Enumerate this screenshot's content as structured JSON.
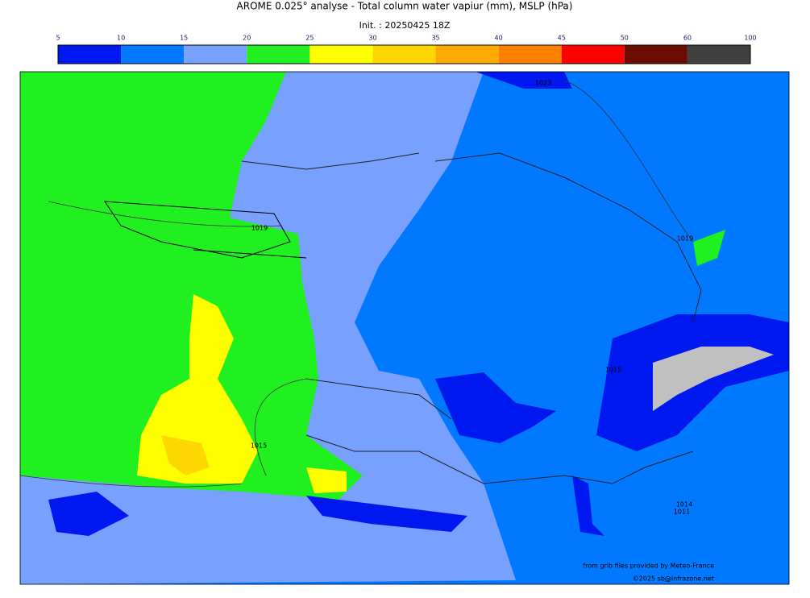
{
  "header": {
    "title": "AROME 0.025° analyse - Total column water vapiur (mm), MSLP (hPa)",
    "subtitle": "Init. : 20250425 18Z"
  },
  "colorbar": {
    "ticks": [
      5,
      10,
      15,
      20,
      25,
      30,
      35,
      40,
      45,
      50,
      60,
      100
    ],
    "colors": [
      "#0018f0",
      "#0078ff",
      "#78a0ff",
      "#20f020",
      "#ffff00",
      "#ffd700",
      "#ffaa00",
      "#ff7f00",
      "#ff0000",
      "#6b0c00",
      "#404040"
    ]
  },
  "map": {
    "isobar_labels": [
      "1023",
      "1019",
      "1019",
      "1015",
      "1015",
      "1014",
      "1011"
    ]
  },
  "credits": {
    "source": "from grib files provided by Meteo-France",
    "copyright": "©2025 sb@infrazone.net"
  }
}
